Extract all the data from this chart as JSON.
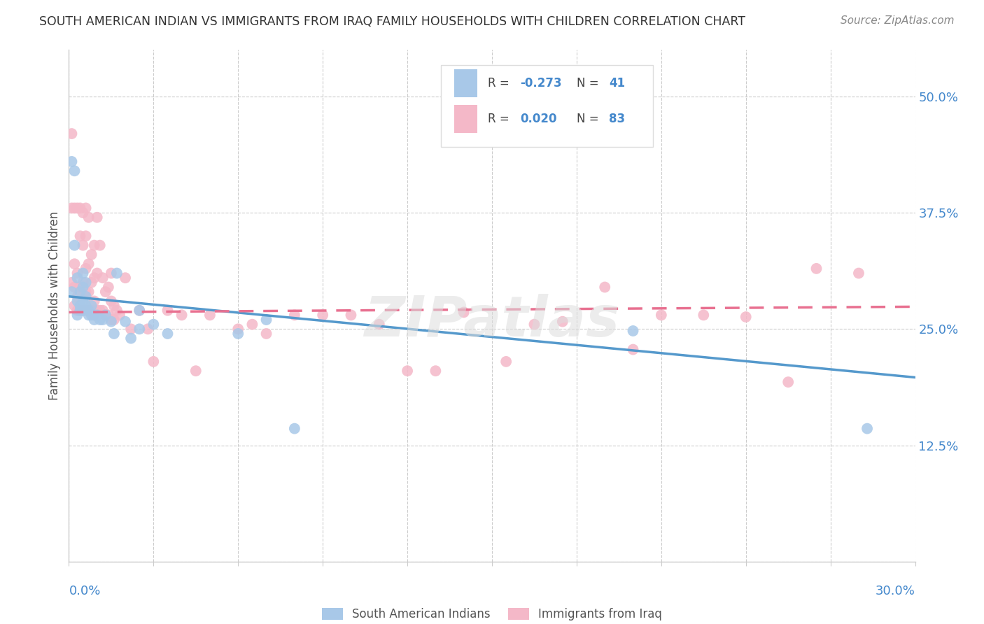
{
  "title": "SOUTH AMERICAN INDIAN VS IMMIGRANTS FROM IRAQ FAMILY HOUSEHOLDS WITH CHILDREN CORRELATION CHART",
  "source": "Source: ZipAtlas.com",
  "ylabel": "Family Households with Children",
  "legend_blue_R": "-0.273",
  "legend_blue_N": "41",
  "legend_pink_R": "0.020",
  "legend_pink_N": "83",
  "blue_color": "#a8c8e8",
  "pink_color": "#f4b8c8",
  "blue_line_color": "#5599cc",
  "pink_line_color": "#e87090",
  "background_color": "#ffffff",
  "grid_color": "#cccccc",
  "title_color": "#333333",
  "source_color": "#888888",
  "tick_color": "#4488cc",
  "ylabel_color": "#555555",
  "xlim": [
    0.0,
    0.3
  ],
  "ylim": [
    0.0,
    0.55
  ],
  "blue_line_start_y": 0.285,
  "blue_line_end_y": 0.198,
  "pink_line_start_y": 0.268,
  "pink_line_end_y": 0.274,
  "blue_scatter_x": [
    0.001,
    0.001,
    0.002,
    0.002,
    0.003,
    0.003,
    0.003,
    0.004,
    0.004,
    0.004,
    0.005,
    0.005,
    0.005,
    0.005,
    0.006,
    0.006,
    0.006,
    0.007,
    0.007,
    0.008,
    0.008,
    0.009,
    0.009,
    0.01,
    0.011,
    0.012,
    0.013,
    0.015,
    0.016,
    0.017,
    0.02,
    0.022,
    0.025,
    0.025,
    0.03,
    0.035,
    0.06,
    0.07,
    0.08,
    0.2,
    0.283
  ],
  "blue_scatter_y": [
    0.43,
    0.29,
    0.42,
    0.34,
    0.305,
    0.28,
    0.265,
    0.29,
    0.275,
    0.27,
    0.31,
    0.295,
    0.28,
    0.27,
    0.3,
    0.285,
    0.275,
    0.27,
    0.265,
    0.275,
    0.265,
    0.265,
    0.26,
    0.265,
    0.26,
    0.26,
    0.265,
    0.258,
    0.245,
    0.31,
    0.258,
    0.24,
    0.25,
    0.27,
    0.255,
    0.245,
    0.245,
    0.26,
    0.143,
    0.248,
    0.143
  ],
  "pink_scatter_x": [
    0.001,
    0.001,
    0.001,
    0.002,
    0.002,
    0.002,
    0.002,
    0.003,
    0.003,
    0.003,
    0.003,
    0.004,
    0.004,
    0.004,
    0.004,
    0.005,
    0.005,
    0.005,
    0.005,
    0.006,
    0.006,
    0.006,
    0.006,
    0.006,
    0.007,
    0.007,
    0.007,
    0.007,
    0.008,
    0.008,
    0.008,
    0.009,
    0.009,
    0.009,
    0.009,
    0.01,
    0.01,
    0.01,
    0.011,
    0.011,
    0.012,
    0.012,
    0.013,
    0.013,
    0.014,
    0.014,
    0.015,
    0.015,
    0.015,
    0.016,
    0.016,
    0.017,
    0.018,
    0.02,
    0.022,
    0.025,
    0.028,
    0.03,
    0.035,
    0.04,
    0.045,
    0.05,
    0.06,
    0.065,
    0.07,
    0.08,
    0.09,
    0.1,
    0.11,
    0.12,
    0.13,
    0.14,
    0.155,
    0.165,
    0.175,
    0.19,
    0.2,
    0.21,
    0.225,
    0.24,
    0.255,
    0.265,
    0.28
  ],
  "pink_scatter_y": [
    0.46,
    0.38,
    0.3,
    0.38,
    0.32,
    0.295,
    0.275,
    0.38,
    0.31,
    0.285,
    0.27,
    0.38,
    0.35,
    0.295,
    0.27,
    0.375,
    0.34,
    0.3,
    0.27,
    0.38,
    0.35,
    0.315,
    0.29,
    0.27,
    0.37,
    0.32,
    0.29,
    0.27,
    0.33,
    0.3,
    0.27,
    0.34,
    0.305,
    0.28,
    0.265,
    0.37,
    0.31,
    0.27,
    0.34,
    0.27,
    0.305,
    0.27,
    0.29,
    0.265,
    0.295,
    0.265,
    0.31,
    0.28,
    0.26,
    0.275,
    0.26,
    0.27,
    0.265,
    0.305,
    0.25,
    0.27,
    0.25,
    0.215,
    0.27,
    0.265,
    0.205,
    0.265,
    0.25,
    0.255,
    0.245,
    0.265,
    0.265,
    0.265,
    0.255,
    0.205,
    0.205,
    0.268,
    0.215,
    0.255,
    0.258,
    0.295,
    0.228,
    0.265,
    0.265,
    0.263,
    0.193,
    0.315,
    0.31
  ]
}
